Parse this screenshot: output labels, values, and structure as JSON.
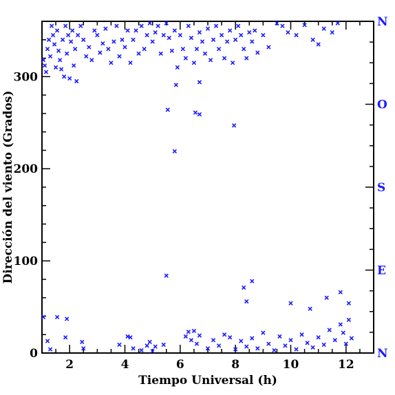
{
  "chart_data": {
    "type": "scatter",
    "title": "",
    "xlabel": "Tiempo Universal (h)",
    "ylabel": "Dirección del viento (Grados)",
    "xlim": [
      1,
      13
    ],
    "ylim": [
      0,
      360
    ],
    "x_ticks": [
      2,
      4,
      6,
      8,
      10,
      12
    ],
    "y_ticks": [
      0,
      100,
      200,
      300
    ],
    "grid": false,
    "marker": "x",
    "point_color": "#1a1aff",
    "right_axis_labels": [
      {
        "label": "N",
        "value": 0
      },
      {
        "label": "E",
        "value": 90
      },
      {
        "label": "S",
        "value": 180
      },
      {
        "label": "O",
        "value": 270
      },
      {
        "label": "N",
        "value": 360
      }
    ],
    "series": [
      {
        "points": [
          [
            1.05,
            318
          ],
          [
            1.1,
            312
          ],
          [
            1.15,
            305
          ],
          [
            1.2,
            330
          ],
          [
            1.25,
            340
          ],
          [
            1.3,
            322
          ],
          [
            1.35,
            355
          ],
          [
            1.4,
            345
          ],
          [
            1.45,
            335
          ],
          [
            1.5,
            310
          ],
          [
            1.55,
            350
          ],
          [
            1.6,
            328
          ],
          [
            1.65,
            318
          ],
          [
            1.7,
            308
          ],
          [
            1.75,
            340
          ],
          [
            1.8,
            300
          ],
          [
            1.85,
            355
          ],
          [
            1.9,
            325
          ],
          [
            1.95,
            345
          ],
          [
            2.0,
            298
          ],
          [
            2.05,
            338
          ],
          [
            2.1,
            350
          ],
          [
            2.15,
            312
          ],
          [
            2.2,
            330
          ],
          [
            2.25,
            295
          ],
          [
            2.3,
            345
          ],
          [
            2.4,
            355
          ],
          [
            2.5,
            340
          ],
          [
            2.6,
            322
          ],
          [
            2.7,
            332
          ],
          [
            2.8,
            318
          ],
          [
            2.9,
            350
          ],
          [
            3.0,
            345
          ],
          [
            3.1,
            326
          ],
          [
            3.2,
            336
          ],
          [
            3.3,
            352
          ],
          [
            3.4,
            330
          ],
          [
            3.5,
            315
          ],
          [
            3.6,
            338
          ],
          [
            3.7,
            355
          ],
          [
            3.8,
            322
          ],
          [
            3.9,
            340
          ],
          [
            4.0,
            332
          ],
          [
            4.1,
            350
          ],
          [
            4.2,
            315
          ],
          [
            4.3,
            340
          ],
          [
            4.4,
            350
          ],
          [
            4.5,
            325
          ],
          [
            4.6,
            355
          ],
          [
            4.7,
            330
          ],
          [
            4.8,
            345
          ],
          [
            4.9,
            358
          ],
          [
            5.0,
            338
          ],
          [
            5.1,
            348
          ],
          [
            5.2,
            355
          ],
          [
            5.3,
            325
          ],
          [
            5.4,
            345
          ],
          [
            5.5,
            358
          ],
          [
            5.6,
            342
          ],
          [
            5.7,
            328
          ],
          [
            5.8,
            350
          ],
          [
            5.9,
            310
          ],
          [
            6.0,
            345
          ],
          [
            6.1,
            330
          ],
          [
            6.2,
            320
          ],
          [
            6.3,
            355
          ],
          [
            6.4,
            342
          ],
          [
            6.5,
            315
          ],
          [
            6.6,
            330
          ],
          [
            6.7,
            348
          ],
          [
            6.8,
            338
          ],
          [
            6.9,
            325
          ],
          [
            7.0,
            352
          ],
          [
            7.1,
            318
          ],
          [
            7.2,
            340
          ],
          [
            7.3,
            355
          ],
          [
            7.4,
            330
          ],
          [
            7.5,
            345
          ],
          [
            7.6,
            320
          ],
          [
            7.7,
            338
          ],
          [
            7.8,
            350
          ],
          [
            7.9,
            315
          ],
          [
            8.0,
            340
          ],
          [
            8.1,
            355
          ],
          [
            8.2,
            345
          ],
          [
            8.3,
            330
          ],
          [
            8.4,
            320
          ],
          [
            8.5,
            348
          ],
          [
            8.6,
            338
          ],
          [
            8.7,
            350
          ],
          [
            8.8,
            326
          ],
          [
            9.0,
            345
          ],
          [
            9.2,
            332
          ],
          [
            9.5,
            358
          ],
          [
            9.7,
            355
          ],
          [
            9.9,
            348
          ],
          [
            10.2,
            345
          ],
          [
            10.5,
            356
          ],
          [
            10.8,
            340
          ],
          [
            11.0,
            335
          ],
          [
            11.2,
            352
          ],
          [
            11.5,
            348
          ],
          [
            11.7,
            358
          ],
          [
            6.7,
            294
          ],
          [
            5.85,
            291
          ],
          [
            5.55,
            264
          ],
          [
            6.55,
            261
          ],
          [
            6.7,
            259
          ],
          [
            7.95,
            247
          ],
          [
            5.8,
            219
          ],
          [
            5.5,
            84
          ],
          [
            1.05,
            39
          ],
          [
            1.2,
            13
          ],
          [
            1.3,
            4
          ],
          [
            1.55,
            39
          ],
          [
            1.85,
            17
          ],
          [
            1.9,
            37
          ],
          [
            2.45,
            12
          ],
          [
            2.5,
            5
          ],
          [
            4.1,
            18
          ],
          [
            4.2,
            17
          ],
          [
            3.8,
            9
          ],
          [
            4.3,
            5
          ],
          [
            4.6,
            3
          ],
          [
            4.8,
            8
          ],
          [
            4.9,
            12
          ],
          [
            5.0,
            2
          ],
          [
            5.1,
            7
          ],
          [
            5.4,
            9
          ],
          [
            6.2,
            18
          ],
          [
            6.3,
            23
          ],
          [
            6.4,
            14
          ],
          [
            6.5,
            24
          ],
          [
            6.6,
            10
          ],
          [
            6.7,
            19
          ],
          [
            7.0,
            5
          ],
          [
            7.2,
            14
          ],
          [
            7.4,
            8
          ],
          [
            7.6,
            20
          ],
          [
            7.8,
            17
          ],
          [
            8.0,
            4
          ],
          [
            8.2,
            13
          ],
          [
            8.4,
            7
          ],
          [
            8.6,
            16
          ],
          [
            8.8,
            5
          ],
          [
            9.0,
            22
          ],
          [
            9.2,
            10
          ],
          [
            9.4,
            3
          ],
          [
            9.6,
            18
          ],
          [
            9.8,
            8
          ],
          [
            10.0,
            14
          ],
          [
            10.2,
            4
          ],
          [
            10.4,
            20
          ],
          [
            10.6,
            11
          ],
          [
            10.8,
            6
          ],
          [
            11.0,
            17
          ],
          [
            11.2,
            9
          ],
          [
            11.4,
            25
          ],
          [
            11.6,
            14
          ],
          [
            11.8,
            31
          ],
          [
            11.9,
            22
          ],
          [
            12.0,
            10
          ],
          [
            12.1,
            36
          ],
          [
            12.2,
            16
          ],
          [
            12.1,
            54
          ],
          [
            11.8,
            66
          ],
          [
            11.3,
            60
          ],
          [
            10.7,
            48
          ],
          [
            10.0,
            54
          ],
          [
            8.6,
            78
          ],
          [
            8.3,
            71
          ],
          [
            8.4,
            56
          ]
        ]
      }
    ]
  }
}
